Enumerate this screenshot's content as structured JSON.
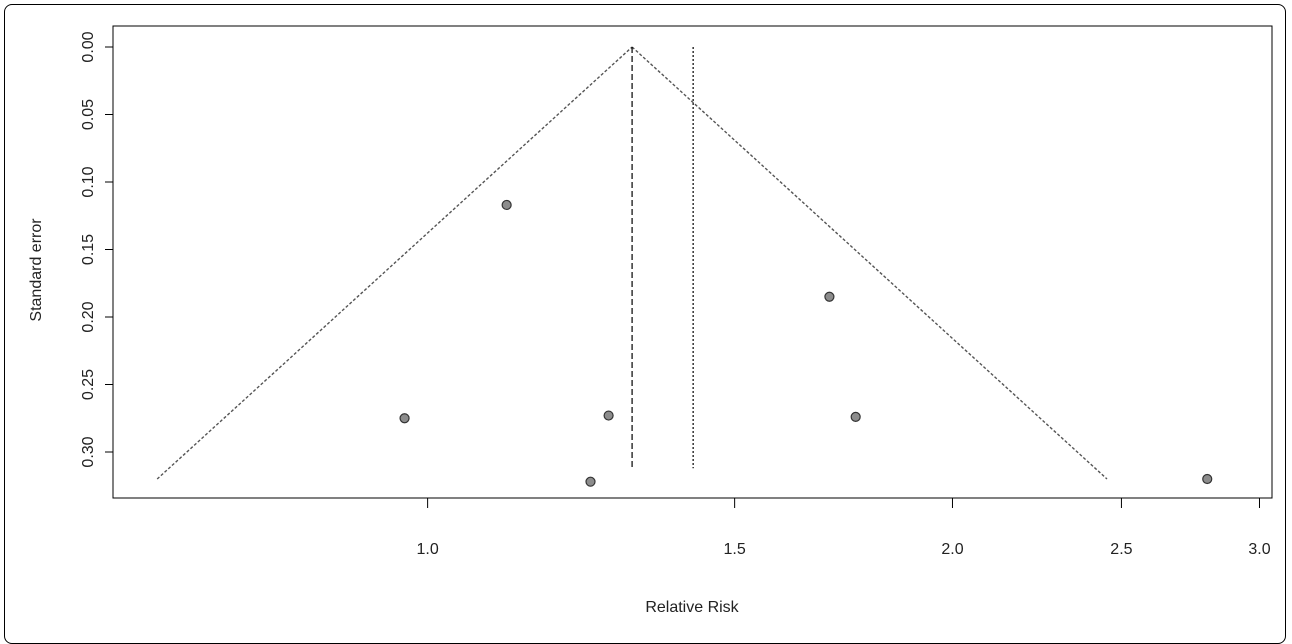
{
  "chart_data": {
    "type": "scatter",
    "title": "",
    "xlabel": "Relative Risk",
    "ylabel": "Standard error",
    "x_scale": "log",
    "y_reversed": true,
    "xlim": [
      0.66,
      3.05
    ],
    "ylim": [
      0,
      0.335
    ],
    "xticks": [
      1.0,
      1.5,
      2.0,
      2.5,
      3.0
    ],
    "xtick_labels": [
      "1.0",
      "1.5",
      "2.0",
      "2.5",
      "3.0"
    ],
    "yticks": [
      0.0,
      0.05,
      0.1,
      0.15,
      0.2,
      0.25,
      0.3
    ],
    "ytick_labels": [
      "0.00",
      "0.05",
      "0.10",
      "0.15",
      "0.20",
      "0.25",
      "0.30"
    ],
    "grid": false,
    "series": [
      {
        "points": [
          {
            "x": 0.97,
            "y": 0.275
          },
          {
            "x": 1.11,
            "y": 0.117
          },
          {
            "x": 1.24,
            "y": 0.322
          },
          {
            "x": 1.27,
            "y": 0.273
          },
          {
            "x": 1.7,
            "y": 0.185
          },
          {
            "x": 1.76,
            "y": 0.274
          },
          {
            "x": 2.8,
            "y": 0.32
          }
        ]
      }
    ],
    "funnel": {
      "apex_x": 1.31,
      "se_max": 0.32,
      "z": 1.96
    },
    "reference_lines": [
      {
        "x": 1.31,
        "style": "dashed"
      },
      {
        "x": 1.42,
        "style": "dotted"
      }
    ],
    "colors": {
      "marker_fill": "#8c8c8c",
      "marker_stroke": "#333333",
      "funnel": "#555555",
      "axis": "#000000"
    }
  }
}
